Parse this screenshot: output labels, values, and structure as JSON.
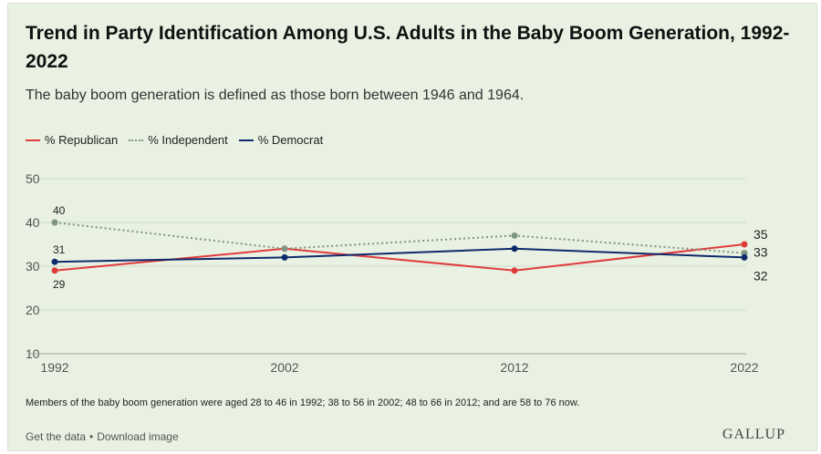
{
  "chart_data": {
    "type": "line",
    "title": "Trend in Party Identification Among U.S. Adults in the Baby Boom Generation, 1992-2022",
    "subtitle": "The baby boom generation is defined as those born between 1946 and 1964.",
    "x": [
      1992,
      2002,
      2012,
      2022
    ],
    "x_tick_labels": [
      "1992",
      "2002",
      "2012",
      "2022"
    ],
    "ylim": [
      10,
      50
    ],
    "y_ticks": [
      10,
      20,
      30,
      40,
      50
    ],
    "grid": true,
    "legend_placement": "top-left",
    "series": [
      {
        "name": "% Republican",
        "color": "#e03c3c",
        "style": "solid",
        "values": [
          29,
          34,
          29,
          35
        ]
      },
      {
        "name": "% Independent",
        "color": "#7f9481",
        "style": "dotted",
        "values": [
          40,
          34,
          37,
          33
        ]
      },
      {
        "name": "% Democrat",
        "color": "#0f2a6b",
        "style": "solid",
        "values": [
          31,
          32,
          34,
          32
        ]
      }
    ],
    "data_labels": [
      {
        "series": 1,
        "index": 0,
        "text": "40"
      },
      {
        "series": 2,
        "index": 0,
        "text": "31"
      },
      {
        "series": 0,
        "index": 0,
        "text": "29"
      },
      {
        "series": 0,
        "index": 3,
        "text": "35"
      },
      {
        "series": 1,
        "index": 3,
        "text": "33"
      },
      {
        "series": 2,
        "index": 3,
        "text": "32"
      }
    ]
  },
  "footnote": "Members of the baby boom generation were aged 28 to 46 in 1992; 38 to 56 in 2002; 48 to 66 in 2012; and are 58 to 76 now.",
  "links": {
    "get_data": "Get the data",
    "separator": "•",
    "download": "Download image"
  },
  "brand": "GALLUP"
}
